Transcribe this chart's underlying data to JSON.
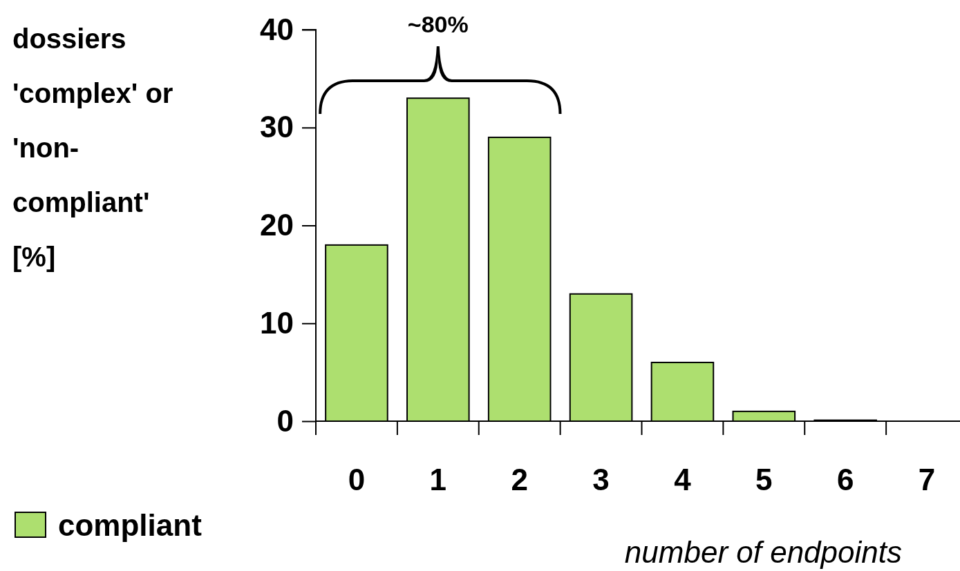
{
  "chart_data": {
    "type": "bar",
    "ylabel": "dossiers 'complex' or 'non-compliant' [%]",
    "xlabel": "number of endpoints",
    "categories": [
      "0",
      "1",
      "2",
      "3",
      "4",
      "5",
      "6",
      "7"
    ],
    "series": [
      {
        "name": "compliant",
        "color": "#addf6f",
        "values": [
          18,
          33,
          29,
          13,
          6,
          1,
          0.1,
          0
        ]
      }
    ],
    "ylim": [
      0,
      40
    ],
    "yticks": [
      0,
      10,
      20,
      30,
      40
    ],
    "grid": false,
    "legend": "bottom left",
    "annotations": [
      "~80%"
    ]
  }
}
